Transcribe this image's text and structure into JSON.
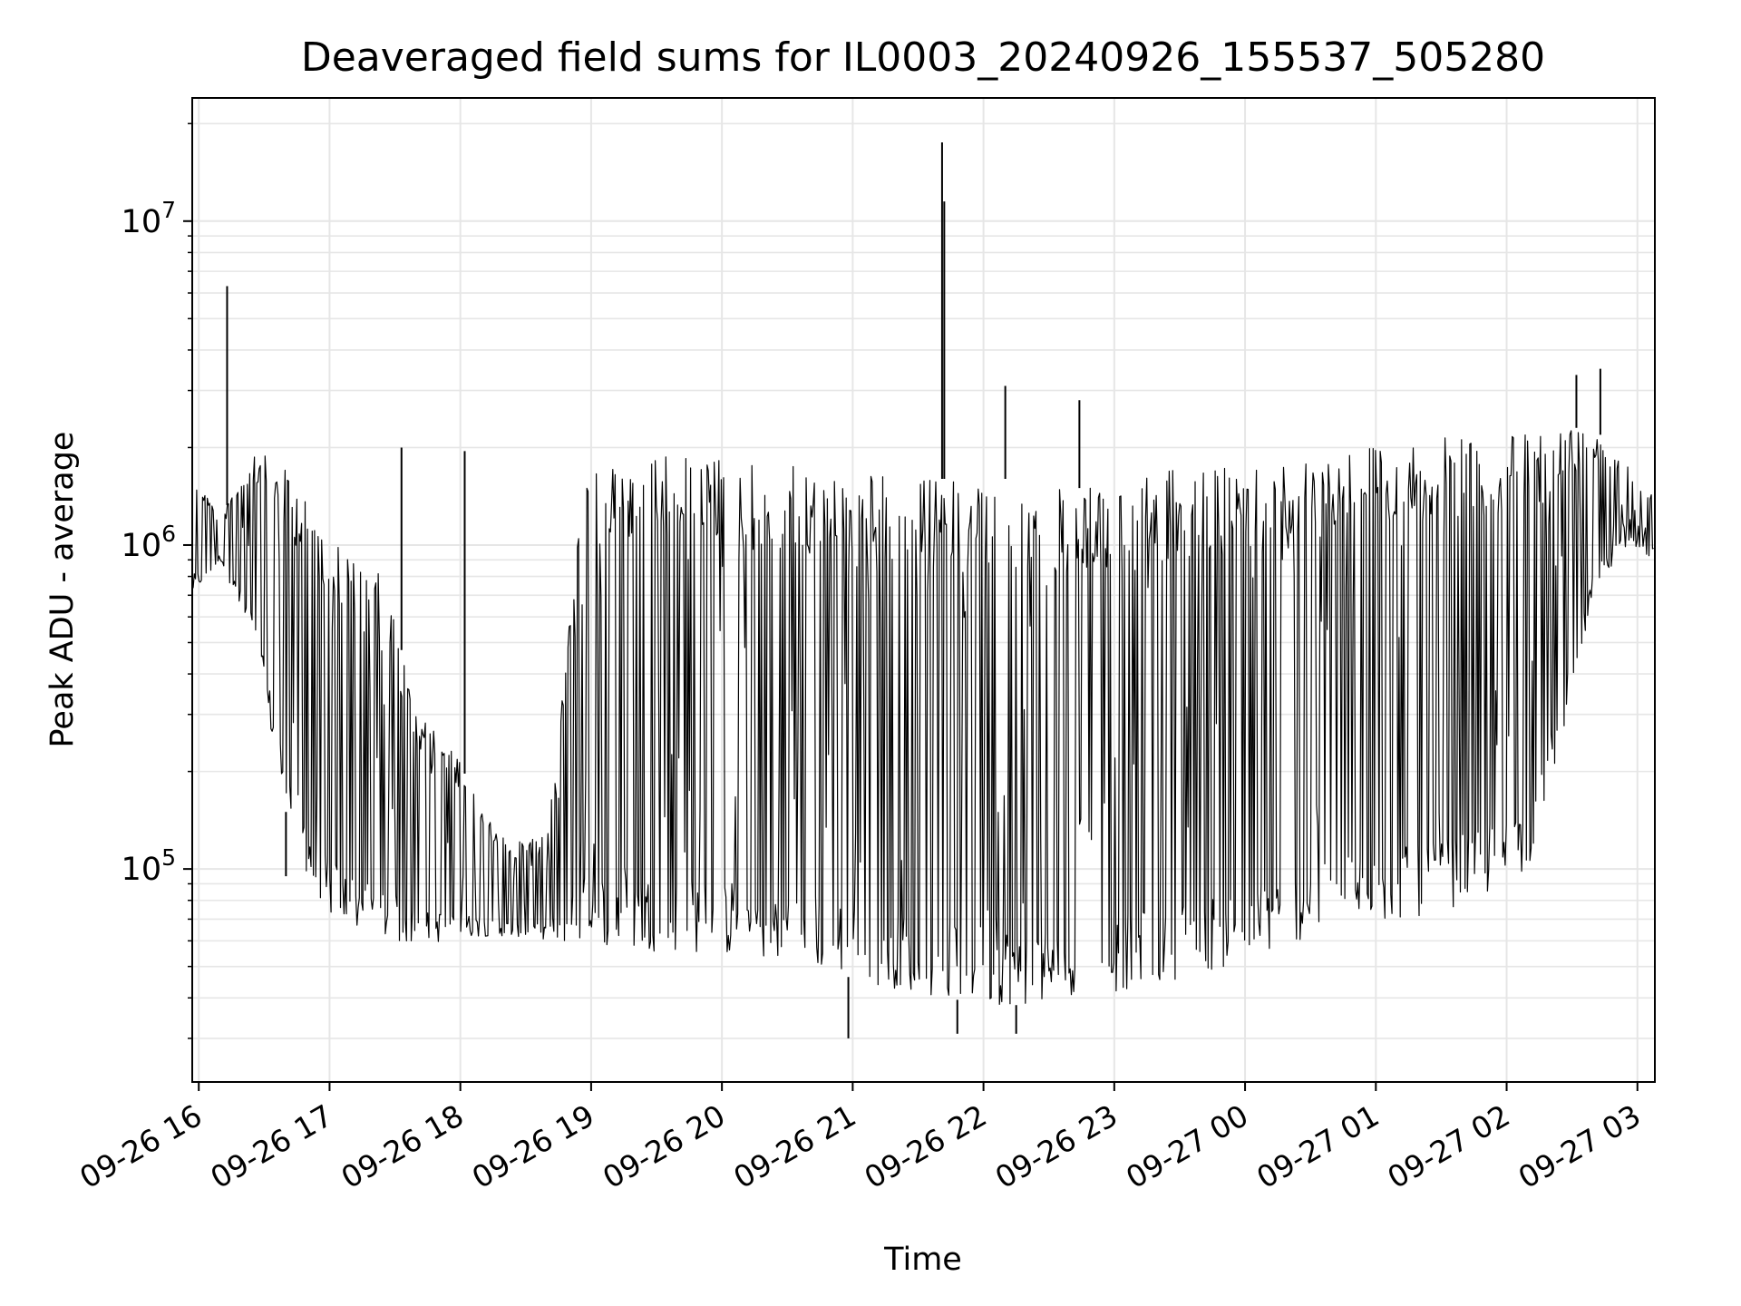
{
  "chart_data": {
    "type": "line",
    "title": "Deaveraged field sums for IL0003_20240926_155537_505280",
    "xlabel": "Time",
    "ylabel": "Peak ADU - average",
    "xlim": [
      "2024-09-26 15:57",
      "2024-09-27 03:08"
    ],
    "ylim": [
      22000,
      24000000
    ],
    "yscale": "log",
    "grid": true,
    "line_color": "#000000",
    "grid_color": "#e6e6e6",
    "x_ticks": [
      {
        "t": "2024-09-26 16:00",
        "label": "09-26 16"
      },
      {
        "t": "2024-09-26 17:00",
        "label": "09-26 17"
      },
      {
        "t": "2024-09-26 18:00",
        "label": "09-26 18"
      },
      {
        "t": "2024-09-26 19:00",
        "label": "09-26 19"
      },
      {
        "t": "2024-09-26 20:00",
        "label": "09-26 20"
      },
      {
        "t": "2024-09-26 21:00",
        "label": "09-26 21"
      },
      {
        "t": "2024-09-26 22:00",
        "label": "09-26 22"
      },
      {
        "t": "2024-09-26 23:00",
        "label": "09-26 23"
      },
      {
        "t": "2024-09-27 00:00",
        "label": "09-27 00"
      },
      {
        "t": "2024-09-27 01:00",
        "label": "09-27 01"
      },
      {
        "t": "2024-09-27 02:00",
        "label": "09-27 02"
      },
      {
        "t": "2024-09-27 03:00",
        "label": "09-27 03"
      }
    ],
    "y_ticks": [
      {
        "value": 100000,
        "base": "10",
        "exp": "5"
      },
      {
        "value": 1000000,
        "base": "10",
        "exp": "6"
      },
      {
        "value": 10000000,
        "base": "10",
        "exp": "7"
      }
    ],
    "profile": {
      "x": [
        "2024-09-26 15:57",
        "2024-09-26 16:10",
        "2024-09-26 16:25",
        "2024-09-26 16:40",
        "2024-09-26 16:55",
        "2024-09-26 17:10",
        "2024-09-26 17:25",
        "2024-09-26 17:40",
        "2024-09-26 17:55",
        "2024-09-26 18:10",
        "2024-09-26 18:25",
        "2024-09-26 18:40",
        "2024-09-26 18:55",
        "2024-09-26 19:10",
        "2024-09-26 19:25",
        "2024-09-26 19:40",
        "2024-09-26 19:55",
        "2024-09-26 20:10",
        "2024-09-26 20:25",
        "2024-09-26 20:40",
        "2024-09-26 20:55",
        "2024-09-26 21:10",
        "2024-09-26 21:25",
        "2024-09-26 21:40",
        "2024-09-26 21:55",
        "2024-09-26 22:10",
        "2024-09-26 22:25",
        "2024-09-26 22:40",
        "2024-09-26 22:55",
        "2024-09-26 23:10",
        "2024-09-26 23:25",
        "2024-09-26 23:40",
        "2024-09-26 23:55",
        "2024-09-27 00:10",
        "2024-09-27 00:25",
        "2024-09-27 00:40",
        "2024-09-27 00:55",
        "2024-09-27 01:10",
        "2024-09-27 01:25",
        "2024-09-27 01:40",
        "2024-09-27 01:55",
        "2024-09-27 02:10",
        "2024-09-27 02:25",
        "2024-09-27 02:40",
        "2024-09-27 02:55",
        "2024-09-27 03:08"
      ],
      "upper": [
        1800000,
        1200000,
        2000000,
        1700000,
        1300000,
        900000,
        800000,
        300000,
        250000,
        150000,
        120000,
        130000,
        1500000,
        1900000,
        1900000,
        1900000,
        1900000,
        1800000,
        1800000,
        1700000,
        1700000,
        1700000,
        1600000,
        1600000,
        1600000,
        1600000,
        1500000,
        1500000,
        1500000,
        1600000,
        1700000,
        1700000,
        1800000,
        1800000,
        1900000,
        2000000,
        2100000,
        2100000,
        2100000,
        2200000,
        2200000,
        2200000,
        2300000,
        2300000,
        1800000,
        1400000
      ],
      "lower": [
        700000,
        900000,
        500000,
        150000,
        75000,
        65000,
        60000,
        58000,
        60000,
        62000,
        62000,
        60000,
        58000,
        57000,
        56000,
        55000,
        55000,
        53000,
        52000,
        50000,
        47000,
        44000,
        42000,
        40000,
        39000,
        38000,
        38000,
        40000,
        41000,
        43000,
        45000,
        48000,
        50000,
        55000,
        60000,
        65000,
        68000,
        70000,
        72000,
        78000,
        85000,
        100000,
        250000,
        700000,
        1000000,
        900000
      ]
    },
    "spikes": [
      {
        "t": "2024-09-26 16:13",
        "value": 6300000
      },
      {
        "t": "2024-09-26 17:33",
        "value": 2000000
      },
      {
        "t": "2024-09-26 18:02",
        "value": 1950000
      },
      {
        "t": "2024-09-26 21:41",
        "value": 17500000
      },
      {
        "t": "2024-09-26 21:42",
        "value": 11500000
      },
      {
        "t": "2024-09-26 22:10",
        "value": 3100000
      },
      {
        "t": "2024-09-26 22:44",
        "value": 2800000
      },
      {
        "t": "2024-09-27 02:32",
        "value": 3350000
      },
      {
        "t": "2024-09-27 02:43",
        "value": 3500000
      }
    ],
    "dips": [
      {
        "t": "2024-09-26 16:40",
        "value": 95000
      },
      {
        "t": "2024-09-26 20:58",
        "value": 30000
      },
      {
        "t": "2024-09-26 21:48",
        "value": 31000
      },
      {
        "t": "2024-09-26 22:15",
        "value": 31000
      }
    ]
  }
}
